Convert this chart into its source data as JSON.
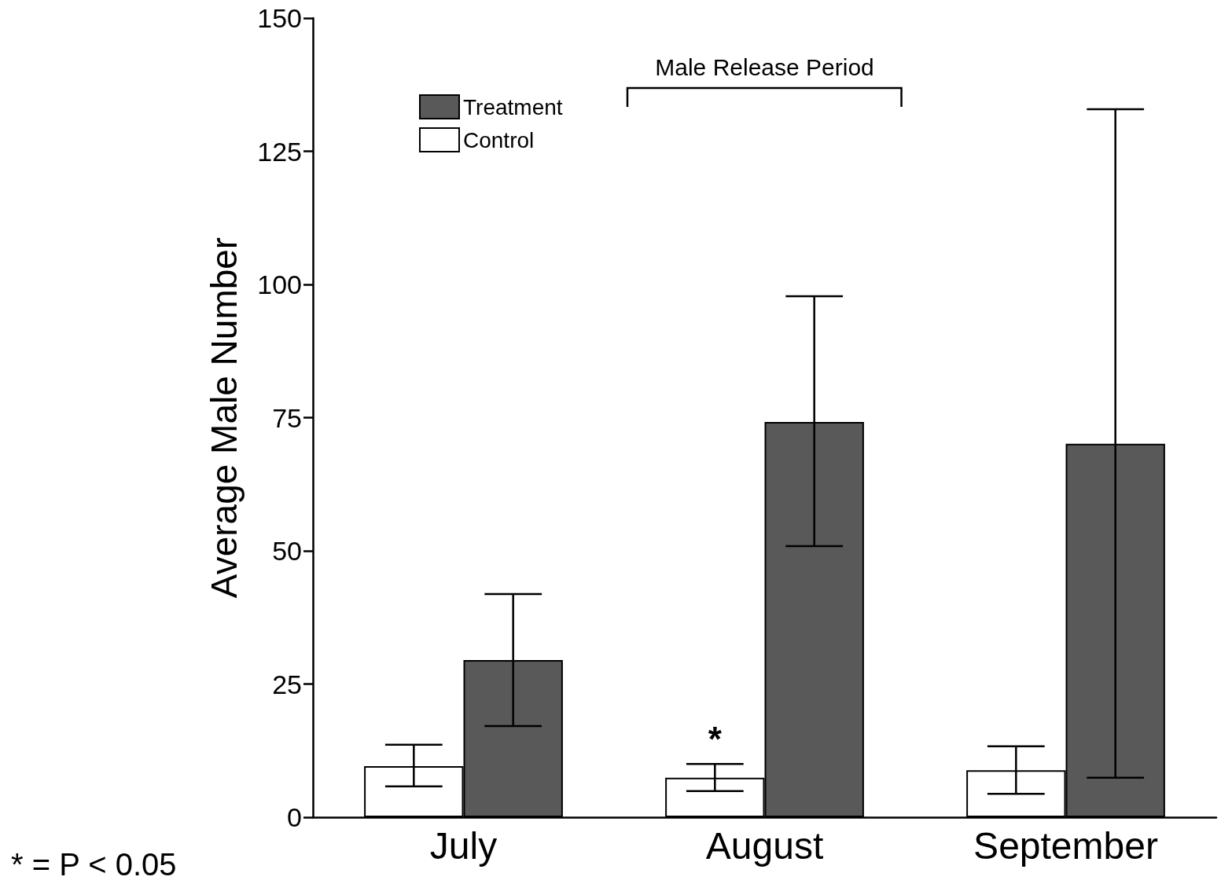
{
  "chart_data": {
    "type": "bar",
    "ylabel": "Average Male Number",
    "categories": [
      "July",
      "August",
      "September"
    ],
    "series": [
      {
        "name": "Control",
        "color": "#ffffff",
        "values": [
          9.6,
          7.4,
          8.8
        ],
        "errors": [
          [
            5.8,
            13.6
          ],
          [
            4.9,
            10.0
          ],
          [
            4.4,
            13.3
          ]
        ]
      },
      {
        "name": "Treatment",
        "color": "#595959",
        "values": [
          29.5,
          74.2,
          70.1
        ],
        "errors": [
          [
            17.1,
            41.9
          ],
          [
            50.9,
            97.8
          ],
          [
            7.4,
            132.9
          ]
        ]
      }
    ],
    "ylim": [
      0,
      150
    ],
    "yticks": [
      0,
      25,
      50,
      75,
      100,
      125,
      150
    ],
    "grid": false,
    "legend": "top left",
    "annotations": [
      "Male Release Period",
      {
        "text": "*",
        "x": "August",
        "y": 14.7
      },
      "* = P < 0.05"
    ]
  }
}
